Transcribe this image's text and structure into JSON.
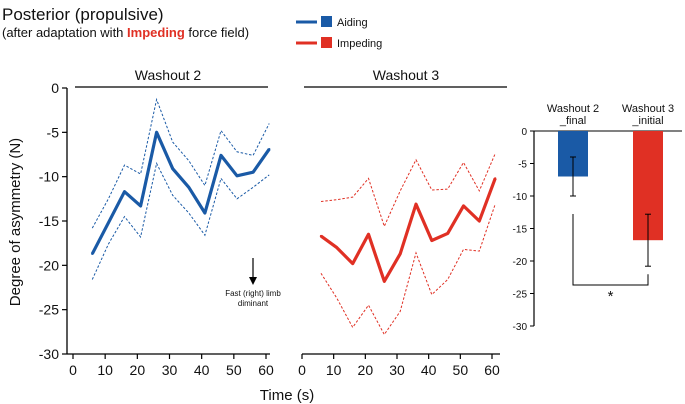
{
  "header": {
    "title": "Posterior (propulsive)",
    "subtitle_pre": "(after adaptation with ",
    "subtitle_emph": "Impeding",
    "subtitle_post": " force field)"
  },
  "legend": [
    {
      "label": "Aiding",
      "color": "#1a5aa6"
    },
    {
      "label": "Impeding",
      "color": "#e03024"
    }
  ],
  "annotation": {
    "line1": "Fast (right) limb",
    "line2": "diminant"
  },
  "chart_data": [
    {
      "type": "line",
      "title": "Washout 2",
      "ylabel": "Degree of asymmetry (N)",
      "ylim": [
        -30,
        0
      ],
      "yticks": [
        "0",
        "-5",
        "-10",
        "-15",
        "-20",
        "-25",
        "-30"
      ],
      "xlim": [
        0,
        60
      ],
      "xticks": [
        "0",
        "10",
        "20",
        "30",
        "40",
        "50",
        "60"
      ],
      "color": "#1a5aa6",
      "x": [
        6,
        11,
        16,
        21,
        26,
        31,
        36,
        41,
        46,
        51,
        56,
        61
      ],
      "mean": [
        -18.7,
        -15.2,
        -11.7,
        -13.3,
        -5.0,
        -9.1,
        -11.2,
        -14.1,
        -7.6,
        -9.9,
        -9.5,
        -6.9
      ],
      "upper": [
        -15.8,
        -12.5,
        -8.7,
        -9.7,
        -1.3,
        -6.1,
        -8.2,
        -11.0,
        -4.8,
        -7.2,
        -7.6,
        -4.0
      ],
      "lower": [
        -21.6,
        -17.6,
        -14.5,
        -16.8,
        -8.5,
        -12.1,
        -14.1,
        -16.6,
        -10.2,
        -12.5,
        -11.2,
        -9.8
      ]
    },
    {
      "type": "line",
      "title": "Washout 3",
      "xlabel": "Time (s)",
      "ylim": [
        -30,
        0
      ],
      "xlim": [
        0,
        60
      ],
      "xticks": [
        "0",
        "10",
        "20",
        "30",
        "40",
        "50",
        "60"
      ],
      "color": "#e03024",
      "x": [
        6,
        11,
        16,
        21,
        26,
        31,
        36,
        41,
        46,
        51,
        56,
        61
      ],
      "mean": [
        -16.7,
        -18.0,
        -19.8,
        -16.5,
        -21.8,
        -18.7,
        -13.1,
        -17.2,
        -16.4,
        -13.3,
        -15.0,
        -10.2
      ],
      "upper": [
        -12.8,
        -12.6,
        -12.3,
        -10.2,
        -15.6,
        -11.6,
        -8.1,
        -11.5,
        -11.4,
        -8.4,
        -11.6,
        -7.4
      ],
      "lower": [
        -20.9,
        -23.7,
        -27.0,
        -24.5,
        -27.8,
        -25.2,
        -18.6,
        -23.3,
        -21.6,
        -18.2,
        -18.4,
        -13.1
      ]
    },
    {
      "type": "bar",
      "categories": [
        "Washout 2\n_final",
        "Washout 3\n_initial"
      ],
      "values": [
        -7.0,
        -16.8
      ],
      "errors": [
        3.0,
        4.0
      ],
      "colors": [
        "#1a5aa6",
        "#e03024"
      ],
      "ylim": [
        -30,
        0
      ],
      "yticks": [
        "0",
        "-5",
        "-10",
        "-15",
        "-20",
        "-25",
        "-30"
      ],
      "significance": "*"
    }
  ]
}
